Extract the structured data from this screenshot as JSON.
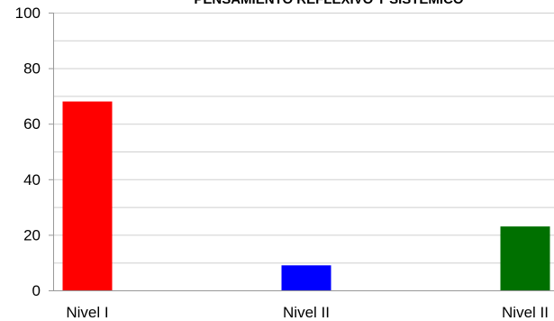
{
  "chart_data": {
    "type": "bar",
    "title": "PENSAMIENTO REFLEXIVO Y SISTÉMICO",
    "categories": [
      "Nivel I",
      "Nivel II",
      "Nivel II"
    ],
    "values": [
      68,
      9,
      23
    ],
    "colors": [
      "#ff0000",
      "#0000ff",
      "#007000"
    ],
    "ylim": [
      0,
      100
    ],
    "yticks": [
      0,
      20,
      40,
      60,
      80,
      100
    ],
    "grid": true,
    "xlabel": "",
    "ylabel": ""
  }
}
